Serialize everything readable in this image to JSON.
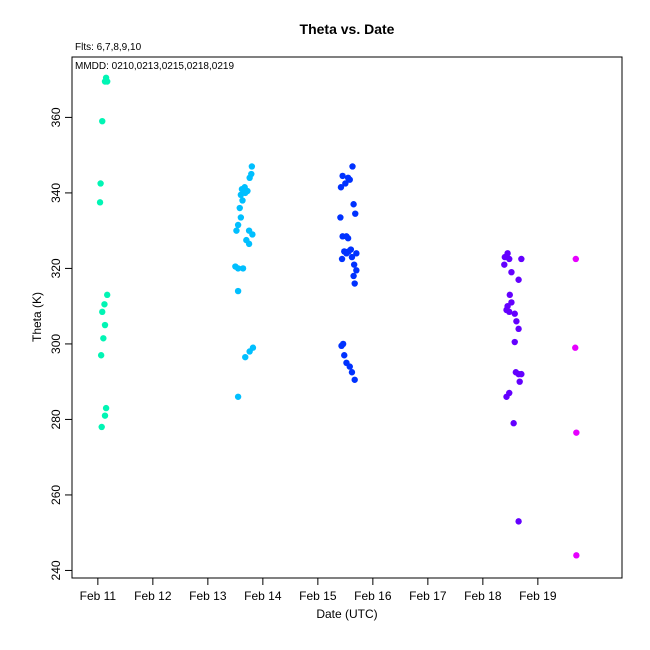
{
  "chart_data": {
    "type": "scatter",
    "title": "Theta  vs. Date",
    "xlabel": "Date (UTC)",
    "ylabel": "Theta (K)",
    "annotation_flts": "Flts: 6,7,8,9,10",
    "annotation_mmdd": "MMDD: 0210,0213,0215,0218,0219",
    "x_ticks": [
      {
        "day": 11,
        "label": "Feb 11"
      },
      {
        "day": 12,
        "label": "Feb 12"
      },
      {
        "day": 13,
        "label": "Feb 13"
      },
      {
        "day": 14,
        "label": "Feb 14"
      },
      {
        "day": 15,
        "label": "Feb 15"
      },
      {
        "day": 16,
        "label": "Feb 16"
      },
      {
        "day": 17,
        "label": "Feb 17"
      },
      {
        "day": 18,
        "label": "Feb 18"
      },
      {
        "day": 19,
        "label": "Feb 19"
      }
    ],
    "y_ticks": [
      240,
      260,
      280,
      300,
      320,
      340,
      360
    ],
    "xlim": [
      10.53,
      20.53
    ],
    "ylim": [
      238,
      376
    ],
    "series": [
      {
        "color": "#00f5b4",
        "points": [
          [
            11.15,
            370.5
          ],
          [
            11.13,
            369.5
          ],
          [
            11.17,
            369.5
          ],
          [
            11.08,
            359.0
          ],
          [
            11.05,
            342.5
          ],
          [
            11.04,
            337.5
          ],
          [
            11.17,
            313.0
          ],
          [
            11.12,
            310.5
          ],
          [
            11.08,
            308.5
          ],
          [
            11.13,
            305.0
          ],
          [
            11.1,
            301.5
          ],
          [
            11.06,
            297.0
          ],
          [
            11.15,
            283.0
          ],
          [
            11.13,
            281.0
          ],
          [
            11.07,
            278.0
          ]
        ]
      },
      {
        "color": "#00bfff",
        "points": [
          [
            13.8,
            347.0
          ],
          [
            13.79,
            345.0
          ],
          [
            13.76,
            344.0
          ],
          [
            13.67,
            341.5
          ],
          [
            13.62,
            341.0
          ],
          [
            13.72,
            340.5
          ],
          [
            13.68,
            340.0
          ],
          [
            13.6,
            339.5
          ],
          [
            13.63,
            338.0
          ],
          [
            13.58,
            336.0
          ],
          [
            13.6,
            333.5
          ],
          [
            13.55,
            331.5
          ],
          [
            13.52,
            330.0
          ],
          [
            13.75,
            330.0
          ],
          [
            13.81,
            329.0
          ],
          [
            13.7,
            327.5
          ],
          [
            13.75,
            326.5
          ],
          [
            13.5,
            320.5
          ],
          [
            13.55,
            320.0
          ],
          [
            13.64,
            320.0
          ],
          [
            13.55,
            314.0
          ],
          [
            13.82,
            299.0
          ],
          [
            13.76,
            298.0
          ],
          [
            13.68,
            296.5
          ],
          [
            13.55,
            286.0
          ]
        ]
      },
      {
        "color": "#0032ff",
        "points": [
          [
            15.63,
            347.0
          ],
          [
            15.45,
            344.5
          ],
          [
            15.55,
            344.0
          ],
          [
            15.58,
            343.5
          ],
          [
            15.5,
            342.5
          ],
          [
            15.42,
            341.5
          ],
          [
            15.65,
            337.0
          ],
          [
            15.68,
            334.5
          ],
          [
            15.41,
            333.5
          ],
          [
            15.45,
            328.5
          ],
          [
            15.52,
            328.5
          ],
          [
            15.55,
            328.0
          ],
          [
            15.6,
            325.0
          ],
          [
            15.48,
            324.5
          ],
          [
            15.56,
            324.5
          ],
          [
            15.7,
            324.0
          ],
          [
            15.52,
            324.0
          ],
          [
            15.62,
            323.0
          ],
          [
            15.44,
            322.5
          ],
          [
            15.66,
            321.0
          ],
          [
            15.7,
            319.5
          ],
          [
            15.65,
            318.0
          ],
          [
            15.67,
            316.0
          ],
          [
            15.46,
            300.0
          ],
          [
            15.43,
            299.5
          ],
          [
            15.48,
            297.0
          ],
          [
            15.52,
            295.0
          ],
          [
            15.58,
            294.0
          ],
          [
            15.62,
            292.5
          ],
          [
            15.67,
            290.5
          ]
        ]
      },
      {
        "color": "#6400ff",
        "points": [
          [
            18.45,
            324.0
          ],
          [
            18.4,
            323.0
          ],
          [
            18.48,
            322.5
          ],
          [
            18.7,
            322.5
          ],
          [
            18.39,
            321.0
          ],
          [
            18.52,
            319.0
          ],
          [
            18.65,
            317.0
          ],
          [
            18.49,
            313.0
          ],
          [
            18.52,
            311.0
          ],
          [
            18.45,
            310.0
          ],
          [
            18.43,
            309.0
          ],
          [
            18.48,
            308.5
          ],
          [
            18.58,
            308.0
          ],
          [
            18.61,
            306.0
          ],
          [
            18.65,
            304.0
          ],
          [
            18.58,
            300.5
          ],
          [
            18.6,
            292.5
          ],
          [
            18.65,
            292.0
          ],
          [
            18.7,
            292.0
          ],
          [
            18.67,
            290.0
          ],
          [
            18.48,
            287.0
          ],
          [
            18.43,
            286.0
          ],
          [
            18.56,
            279.0
          ],
          [
            18.65,
            253.0
          ]
        ]
      },
      {
        "color": "#e600ff",
        "points": [
          [
            19.69,
            322.5
          ],
          [
            19.68,
            299.0
          ],
          [
            19.7,
            276.5
          ],
          [
            19.7,
            244.0
          ]
        ]
      }
    ]
  }
}
